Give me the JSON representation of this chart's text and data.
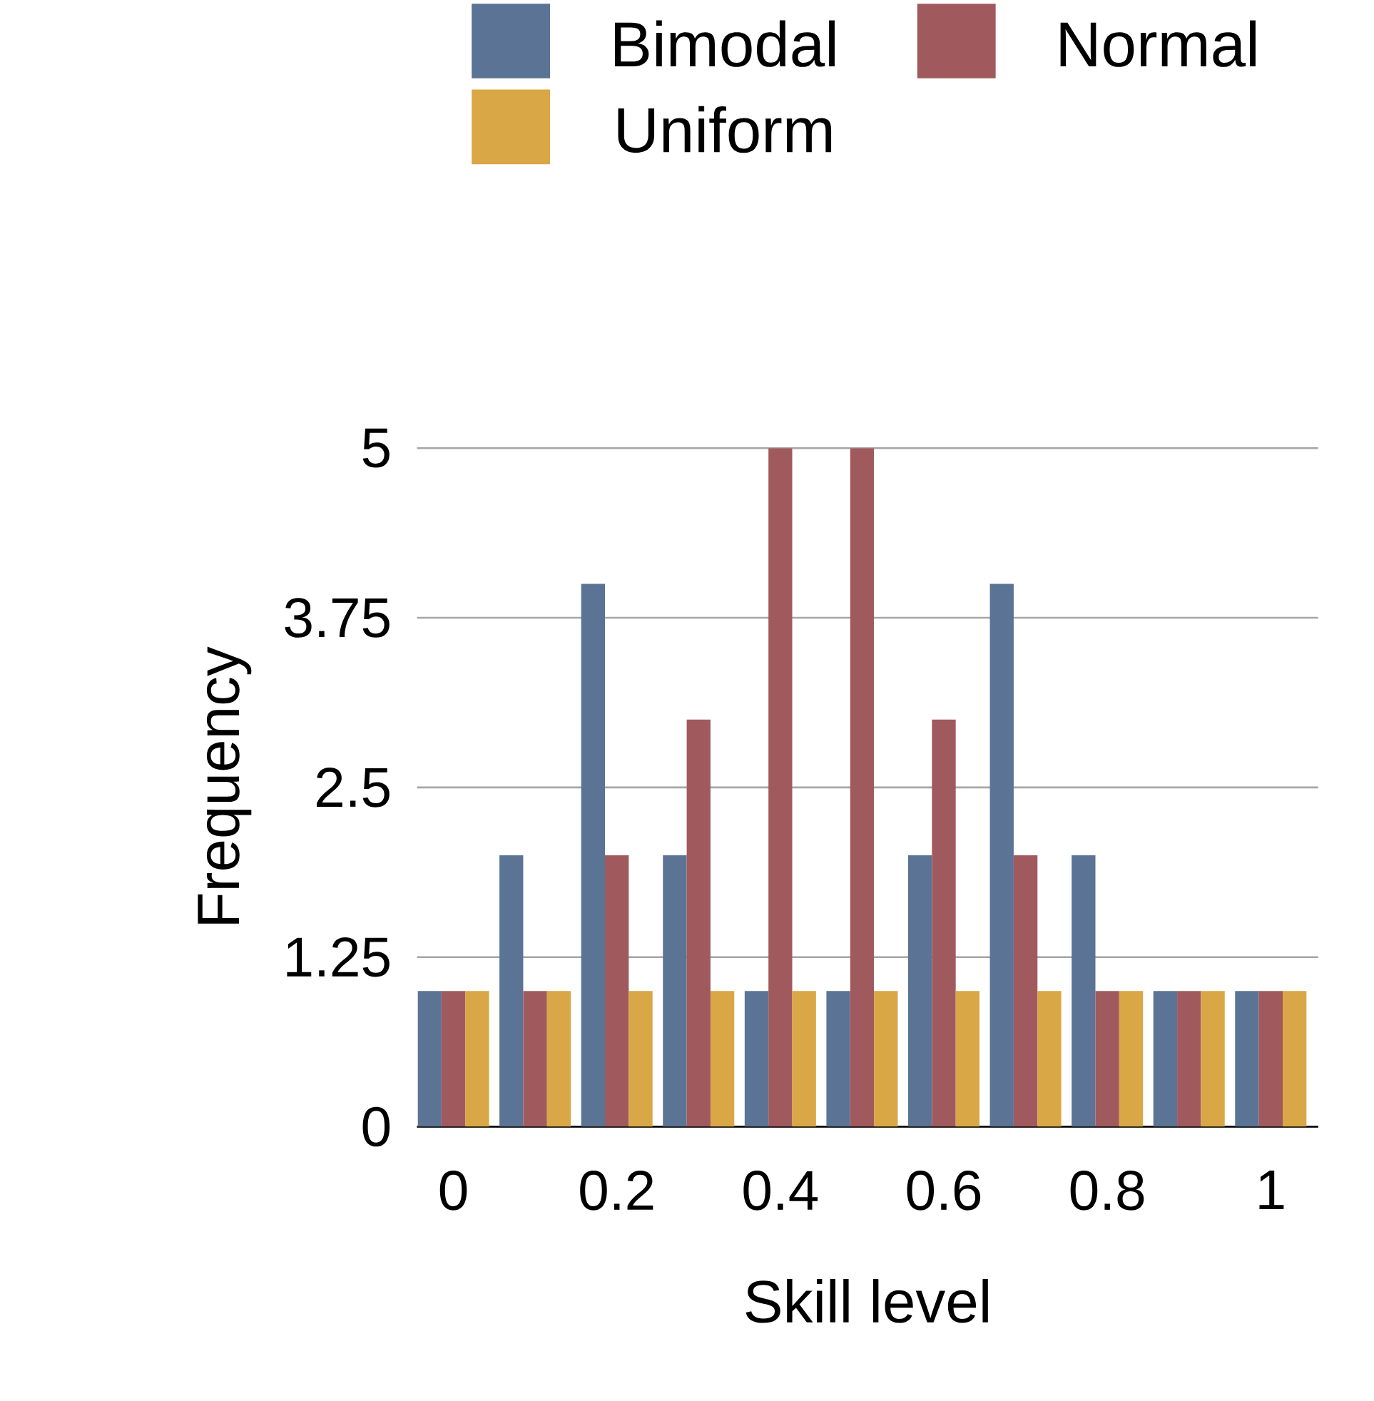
{
  "chart_data": {
    "type": "bar",
    "xlabel": "Skill level",
    "ylabel": "Frequency",
    "categories": [
      "0",
      null,
      "0.2",
      null,
      "0.4",
      null,
      "0.6",
      null,
      "0.8",
      null,
      "1"
    ],
    "series": [
      {
        "name": "Bimodal",
        "color": "#5b7394",
        "values": [
          1,
          2,
          4,
          2,
          1,
          1,
          2,
          4,
          2,
          1,
          1
        ]
      },
      {
        "name": "Normal",
        "color": "#a05a5e",
        "values": [
          1,
          1,
          2,
          3,
          5,
          5,
          3,
          2,
          1,
          1,
          1
        ]
      },
      {
        "name": "Uniform",
        "color": "#d9a746",
        "values": [
          1,
          1,
          1,
          1,
          1,
          1,
          1,
          1,
          1,
          1,
          1
        ]
      }
    ],
    "ylim": [
      0,
      5
    ],
    "yticks": [
      0,
      1.25,
      2.5,
      3.75,
      5
    ],
    "grid": "y",
    "legend": "top"
  }
}
